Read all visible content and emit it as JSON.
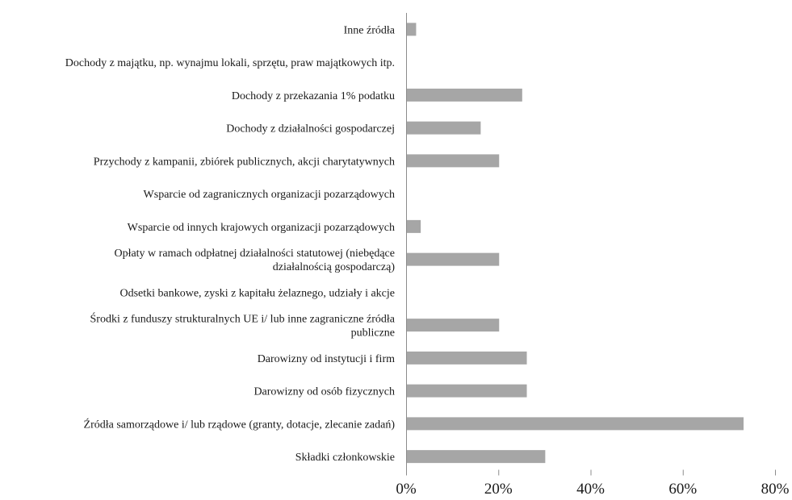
{
  "chart_data": {
    "type": "bar",
    "orientation": "horizontal",
    "categories": [
      [
        "Inne źródła"
      ],
      [
        "Dochody z majątku, np. wynajmu lokali, sprzętu, praw majątkowych itp."
      ],
      [
        "Dochody z przekazania 1% podatku"
      ],
      [
        "Dochody z działalności gospodarczej"
      ],
      [
        "Przychody z kampanii, zbiórek publicznych, akcji charytatywnych"
      ],
      [
        "Wsparcie od zagranicznych organizacji pozarządowych"
      ],
      [
        "Wsparcie od innych krajowych organizacji pozarządowych"
      ],
      [
        "Opłaty w ramach odpłatnej działalności statutowej (niebędące",
        "działalnością gospodarczą)"
      ],
      [
        "Odsetki bankowe, zyski z kapitału żelaznego, udziały i akcje"
      ],
      [
        "Środki z funduszy strukturalnych UE i/ lub inne zagraniczne źródła",
        "publiczne"
      ],
      [
        "Darowizny od instytucji i firm"
      ],
      [
        "Darowizny od osób fizycznych"
      ],
      [
        "Źródła samorządowe i/ lub rządowe (granty, dotacje, zlecanie zadań)"
      ],
      [
        "Składki członkowskie"
      ]
    ],
    "values": [
      2,
      0,
      25,
      16,
      20,
      0,
      3,
      20,
      0,
      20,
      26,
      26,
      73,
      30
    ],
    "xlim": [
      0,
      80
    ],
    "ticks": [
      "0%",
      "20%",
      "40%",
      "60%",
      "80%"
    ],
    "bar_color": "#a6a6a6",
    "title": "",
    "xlabel": "",
    "ylabel": "",
    "grid": false
  }
}
